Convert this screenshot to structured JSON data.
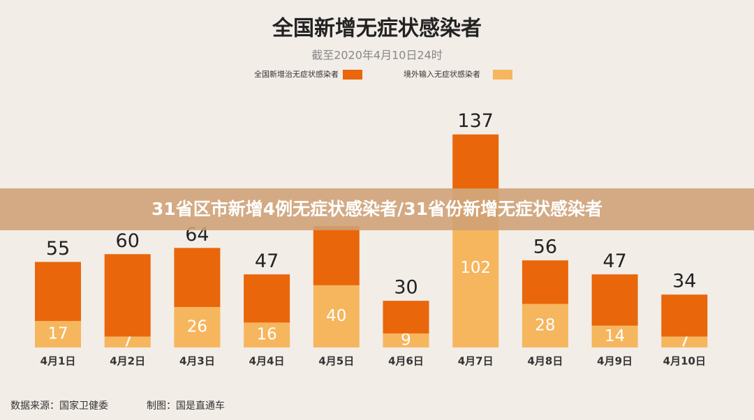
{
  "chart_data": {
    "type": "stacked_bar",
    "title": "全国新增无症状感染者",
    "subtitle": "截至2020年4月10日24时",
    "categories": [
      "4月1日",
      "4月2日",
      "4月3日",
      "4月4日",
      "4月5日",
      "4月6日",
      "4月7日",
      "4月8日",
      "4月9日",
      "4月10日"
    ],
    "series": [
      {
        "name": "境外输入无症状感染者",
        "color": "#f6b65e",
        "values": [
          17,
          7,
          26,
          16,
          40,
          9,
          102,
          28,
          14,
          7
        ]
      },
      {
        "name": "全国新增治无症状感染者",
        "color": "#e9660b",
        "values": [
          38,
          53,
          38,
          31,
          38,
          21,
          35,
          28,
          33,
          27
        ]
      }
    ],
    "totals": [
      55,
      60,
      64,
      47,
      null,
      30,
      137,
      56,
      47,
      34
    ],
    "ylim": [
      0,
      140
    ],
    "source": "数据来源：国家卫健委",
    "credit": "制图：国是直通车"
  },
  "banner": "31省区市新增4例无症状感染者/31省份新增无症状感染者"
}
